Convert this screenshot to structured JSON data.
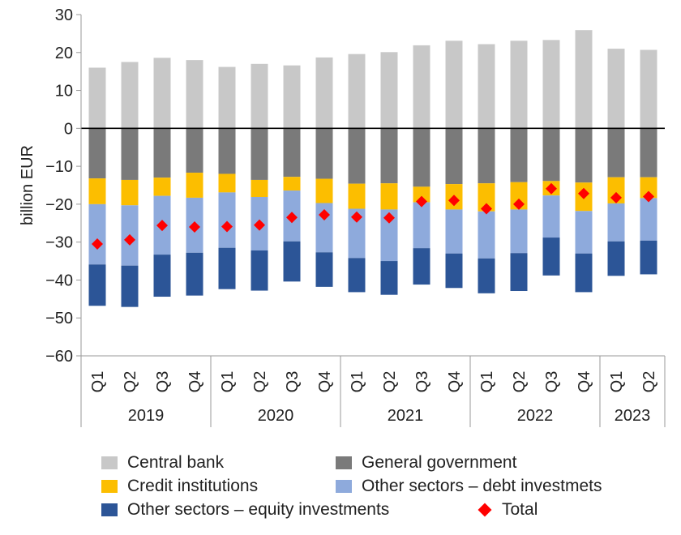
{
  "chart_data": {
    "type": "bar",
    "stacked": true,
    "ylabel": "billion EUR",
    "ylim": [
      -60,
      30
    ],
    "yticks": [
      30,
      20,
      10,
      0,
      -10,
      -20,
      -30,
      -40,
      -50,
      -60
    ],
    "ytick_labels": [
      "30",
      "20",
      "10",
      "0",
      "−10",
      "−20",
      "−30",
      "−40",
      "−50",
      "−60"
    ],
    "categories": [
      "Q1",
      "Q2",
      "Q3",
      "Q4",
      "Q1",
      "Q2",
      "Q3",
      "Q4",
      "Q1",
      "Q2",
      "Q3",
      "Q4",
      "Q1",
      "Q2",
      "Q3",
      "Q4",
      "Q1",
      "Q2"
    ],
    "years": [
      {
        "label": "2019",
        "count": 4
      },
      {
        "label": "2020",
        "count": 4
      },
      {
        "label": "2021",
        "count": 4
      },
      {
        "label": "2022",
        "count": 4
      },
      {
        "label": "2023",
        "count": 2
      }
    ],
    "series": [
      {
        "name": "Central bank",
        "color": "#c8c8c8",
        "values": [
          16.0,
          17.5,
          18.6,
          18.0,
          16.2,
          17.0,
          16.6,
          18.7,
          19.6,
          20.1,
          21.9,
          23.1,
          22.2,
          23.1,
          23.3,
          25.9,
          21.0,
          20.7
        ]
      },
      {
        "name": "General government",
        "color": "#7a7a7a",
        "values": [
          -13.2,
          -13.6,
          -13.0,
          -11.7,
          -12.0,
          -13.6,
          -12.8,
          -13.3,
          -14.6,
          -14.5,
          -15.4,
          -14.7,
          -14.5,
          -14.2,
          -13.9,
          -14.3,
          -12.9,
          -12.9
        ]
      },
      {
        "name": "Credit institutions",
        "color": "#fcbe00",
        "values": [
          -6.8,
          -6.7,
          -4.8,
          -6.6,
          -4.9,
          -4.5,
          -3.6,
          -6.4,
          -6.6,
          -6.9,
          -4.1,
          -6.7,
          -7.4,
          -7.2,
          -3.8,
          -7.5,
          -6.9,
          -5.5
        ]
      },
      {
        "name": "Other sectors – debt investmets",
        "color": "#8eaadc",
        "values": [
          -15.9,
          -15.9,
          -15.5,
          -14.5,
          -14.6,
          -14.1,
          -13.4,
          -13.0,
          -13.0,
          -13.6,
          -12.1,
          -11.6,
          -12.4,
          -11.5,
          -11.1,
          -11.2,
          -10.0,
          -11.2
        ]
      },
      {
        "name": "Other sectors – equity investments",
        "color": "#2c5597",
        "values": [
          -10.9,
          -10.9,
          -11.1,
          -11.3,
          -10.9,
          -10.6,
          -10.6,
          -9.1,
          -9.0,
          -8.9,
          -9.6,
          -9.1,
          -9.2,
          -10.0,
          -10.0,
          -10.2,
          -9.1,
          -8.9
        ]
      }
    ],
    "total": {
      "name": "Total",
      "color": "#ff0000",
      "values": [
        -30.5,
        -29.4,
        -25.6,
        -26.0,
        -25.9,
        -25.5,
        -23.5,
        -22.8,
        -23.4,
        -23.6,
        -19.3,
        -19.0,
        -21.2,
        -20.0,
        -15.9,
        -17.2,
        -18.3,
        -18.0
      ]
    },
    "legend_position": "bottom",
    "grid": false
  }
}
